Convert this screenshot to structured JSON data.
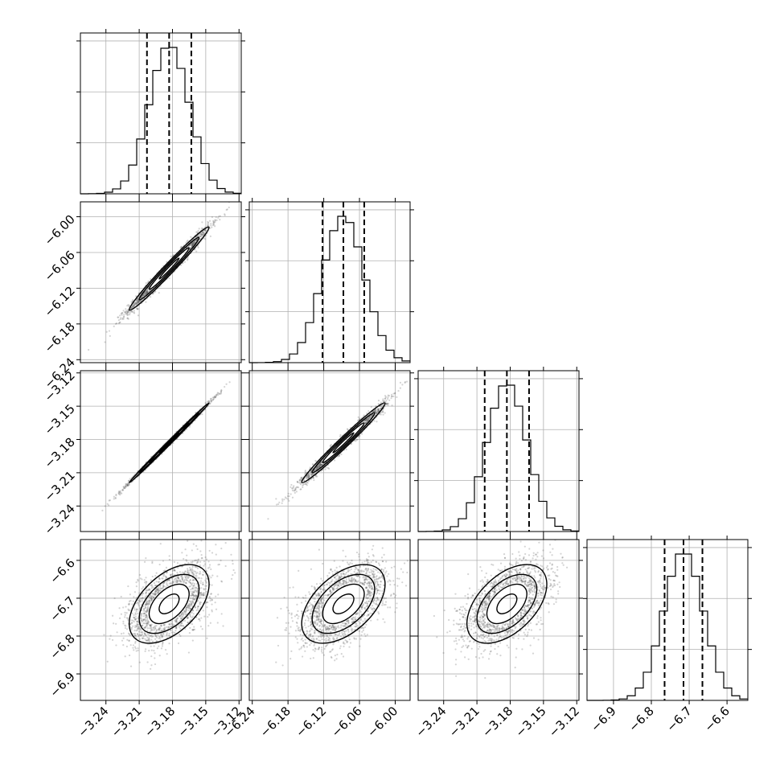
{
  "chart_data": {
    "type": "corner",
    "params": [
      {
        "mean": -3.183,
        "sd": 0.018,
        "range": [
          -3.263,
          -3.118
        ],
        "ticks": [
          -3.24,
          -3.21,
          -3.18,
          -3.15,
          -3.12
        ],
        "tick_labels": [
          "−3.24",
          "−3.21",
          "−3.18",
          "−3.15",
          "−3.12"
        ],
        "quantiles": [
          -3.203,
          -3.183,
          -3.163
        ]
      },
      {
        "mean": -6.087,
        "sd": 0.035,
        "range": [
          -6.245,
          -5.975
        ],
        "ticks": [
          -6.24,
          -6.18,
          -6.12,
          -6.06,
          -6.0
        ],
        "tick_labels": [
          "−6.24",
          "−6.18",
          "−6.12",
          "−6.06",
          "−6.00"
        ],
        "quantiles": [
          -6.122,
          -6.087,
          -6.052
        ]
      },
      {
        "mean": -3.183,
        "sd": 0.018,
        "range": [
          -3.263,
          -3.118
        ],
        "ticks": [
          -3.24,
          -3.21,
          -3.18,
          -3.15,
          -3.12
        ],
        "tick_labels": [
          "−3.24",
          "−3.21",
          "−3.18",
          "−3.15",
          "−3.12"
        ],
        "quantiles": [
          -3.203,
          -3.183,
          -3.163
        ]
      },
      {
        "mean": -6.715,
        "sd": 0.052,
        "range": [
          -6.97,
          -6.545
        ],
        "ticks": [
          -6.9,
          -6.8,
          -6.7,
          -6.6
        ],
        "tick_labels": [
          "−6.9",
          "−6.8",
          "−6.7",
          "−6.6"
        ],
        "quantiles": [
          -6.765,
          -6.715,
          -6.665
        ]
      }
    ],
    "correlations": [
      {
        "i": 1,
        "j": 0,
        "rho": 0.985
      },
      {
        "i": 2,
        "j": 0,
        "rho": 0.998
      },
      {
        "i": 2,
        "j": 1,
        "rho": 0.985
      },
      {
        "i": 3,
        "j": 0,
        "rho": 0.5
      },
      {
        "i": 3,
        "j": 1,
        "rho": 0.5
      },
      {
        "i": 3,
        "j": 2,
        "rho": 0.5
      }
    ],
    "contour_levels_sigma": [
      0.5,
      1.0,
      1.5,
      2.0
    ],
    "diagonal": "1-D histograms with dashed lines at the 16th, 50th and 84th percentiles",
    "off_diagonal": "2-D histograms with scatter points and density contours",
    "grid": true
  }
}
